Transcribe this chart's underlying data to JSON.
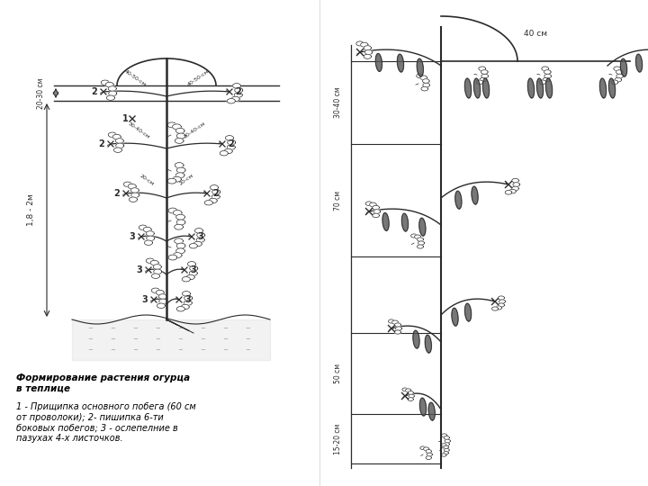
{
  "bg_color": "#ffffff",
  "gray": "#2a2a2a",
  "left_caption_bold": "Формирование растения огурца\nв теплице",
  "left_caption_normal": "1 - Прищипка основного побега (60 см\nот проволоки); 2- пишипка 6-ти\nбоковых побегов; 3 - ослепелние в\nпазухах 4-х листочков.",
  "label_20_30": "20-30 см",
  "label_18_2": "1,8 - 2м",
  "right_label_40": "40 см",
  "right_label_30_40": "30-40 см",
  "right_label_70": "70 см",
  "right_label_50": "50 см",
  "right_label_15_20": "15-20 см"
}
